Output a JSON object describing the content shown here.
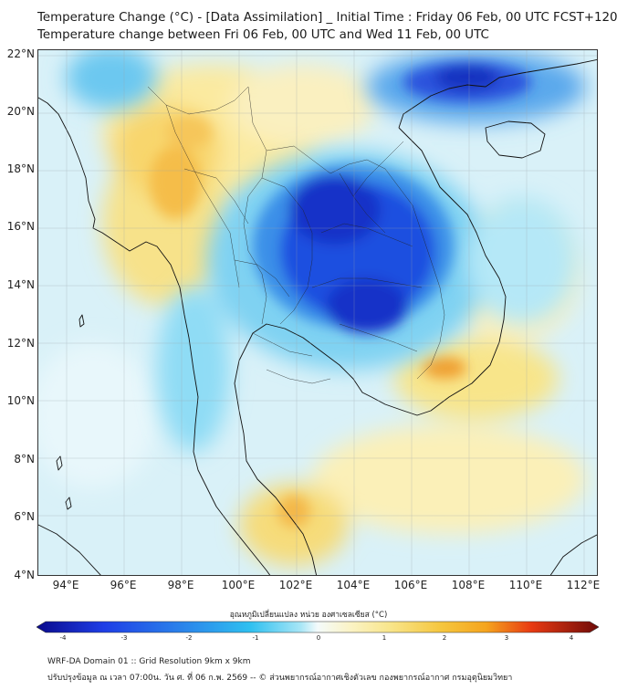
{
  "header": {
    "title_line1": "Temperature Change (°C) - [Data Assimilation] _ Initial Time : Friday 06 Feb, 00 UTC FCST+120",
    "title_line2": "Temperature change between Fri 06 Feb, 00 UTC and Wed 11 Feb, 00 UTC"
  },
  "map": {
    "lat_labels": [
      "22°N",
      "20°N",
      "18°N",
      "16°N",
      "14°N",
      "12°N",
      "10°N",
      "8°N",
      "6°N",
      "4°N"
    ],
    "lon_labels": [
      "94°E",
      "96°E",
      "98°E",
      "100°E",
      "102°E",
      "104°E",
      "106°E",
      "108°E",
      "110°E",
      "112°E"
    ],
    "extent": {
      "lon_min": 93,
      "lon_max": 112.5,
      "lat_min": 4,
      "lat_max": 22.3
    },
    "grid": true
  },
  "colorbar": {
    "title": "อุณหภูมิเปลี่ยนแปลง หน่วย องศาเซลเซียส (°C)",
    "ticks": [
      "-4",
      "-3",
      "-2",
      "-1",
      "0",
      "1",
      "2",
      "3",
      "4"
    ],
    "range": [
      -4,
      4
    ],
    "colors": {
      "min": "#0a0a8c",
      "strong_cold": "#1e3ee6",
      "cold": "#2aa2ea",
      "cool": "#8fdcf5",
      "neutral": "#f4fbfb",
      "warm": "#f8e58a",
      "hot": "#f5a41e",
      "very_hot": "#e83a12",
      "max": "#6e0a08"
    }
  },
  "footer": {
    "line1": "WRF-DA Domain 01 :: Grid Resolution 9km x 9km",
    "line2": "ปรับปรุงข้อมูล ณ เวลา 07:00น. วัน ศ. ที่ 06 ก.พ. 2569 -- © ส่วนพยากรณ์อากาศเชิงตัวเลข กองพยากรณ์อากาศ กรมอุตุนิยมวิทยา"
  }
}
